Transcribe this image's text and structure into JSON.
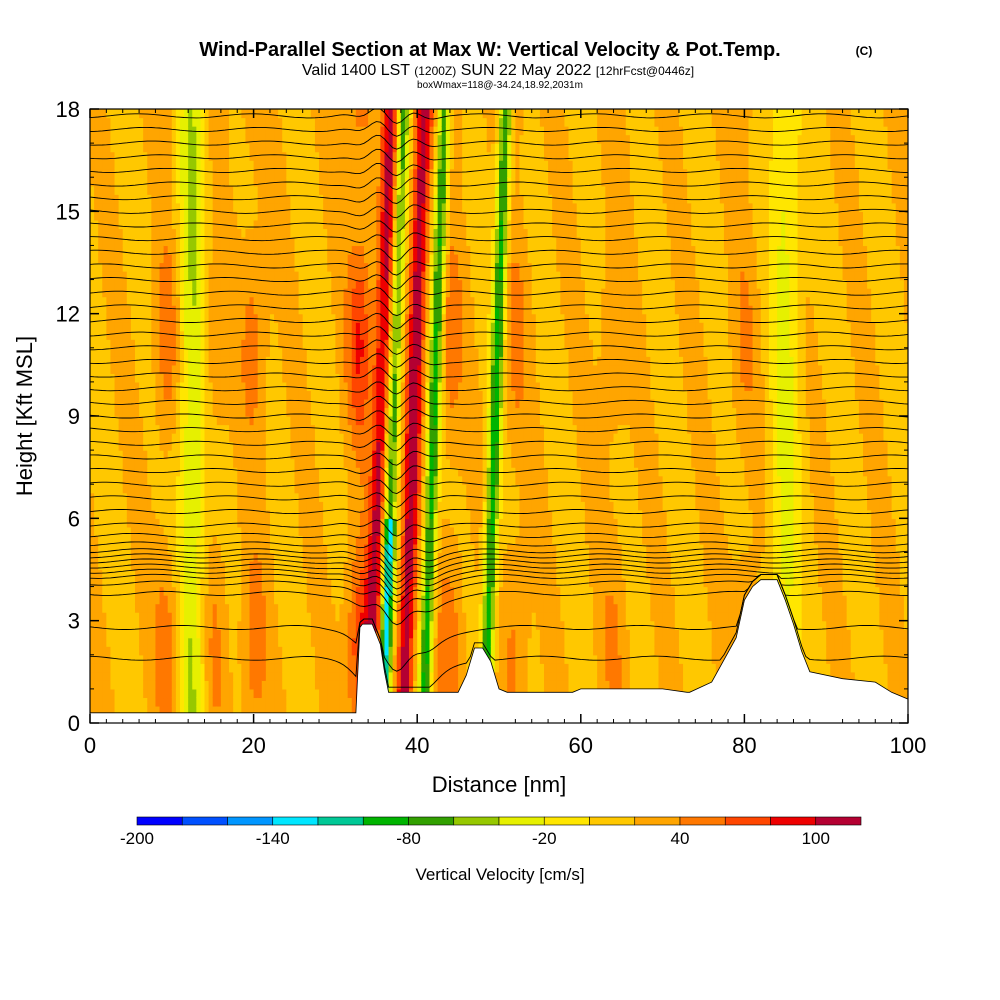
{
  "chart_data": {
    "type": "heatmap",
    "title": "Wind-Parallel Section at Max W: Vertical Velocity & Pot.Temp.",
    "copyright_mark": "(C)",
    "subtitle": {
      "valid_prefix": "Valid 1400 LST",
      "utc": "(1200Z)",
      "date": "SUN 22 May 2022",
      "forecast": "[12hrFcst@0446z]"
    },
    "box_info": "boxWmax=118@-34.24,18.92,2031m",
    "xlabel": "Distance [nm]",
    "ylabel": "Height [Kft MSL]",
    "xlim": [
      0,
      100
    ],
    "ylim": [
      0,
      18
    ],
    "x_ticks": [
      0,
      20,
      40,
      60,
      80,
      100
    ],
    "x_tick_labels": [
      "0",
      "20",
      "40",
      "60",
      "80",
      "100"
    ],
    "y_ticks": [
      0,
      3,
      6,
      9,
      12,
      15,
      18
    ],
    "y_tick_labels": [
      "0",
      "3",
      "6",
      "9",
      "12",
      "15",
      "18"
    ],
    "fill_variable": "Vertical Velocity [cm/s]",
    "contour_variable": "Potential Temperature (C)",
    "colorbar": {
      "label": "Vertical Velocity [cm/s]",
      "levels": [
        -200,
        -180,
        -160,
        -140,
        -120,
        -100,
        -80,
        -60,
        -40,
        -20,
        0,
        20,
        40,
        60,
        80,
        100,
        120
      ],
      "colors": [
        "#0000ff",
        "#0050ff",
        "#0096ff",
        "#00e6ff",
        "#00c896",
        "#00b400",
        "#32a000",
        "#96c800",
        "#e6f000",
        "#ffe600",
        "#ffc800",
        "#ffa500",
        "#ff7800",
        "#ff4600",
        "#ee0000",
        "#b40032"
      ],
      "tick_values": [
        -200,
        -140,
        -80,
        -20,
        40,
        100
      ],
      "tick_labels": [
        "-200",
        "-140",
        "-80",
        "-20",
        "40",
        "100"
      ]
    },
    "terrain_profile": {
      "distance_nm": [
        0,
        10,
        20,
        30,
        32.5,
        33,
        33.3,
        34.5,
        35.5,
        36,
        36.5,
        37,
        38,
        42,
        45,
        46,
        47,
        48,
        49,
        50,
        51,
        55,
        59,
        60,
        62,
        70,
        73,
        73.3,
        76,
        79,
        80,
        81,
        82,
        84,
        85,
        86,
        87,
        88,
        92,
        96,
        98,
        100
      ],
      "height_kft": [
        0.3,
        0.3,
        0.3,
        0.3,
        0.3,
        2.8,
        2.9,
        2.9,
        2.3,
        1.5,
        0.9,
        0.9,
        0.9,
        0.9,
        0.9,
        1.4,
        2.2,
        2.2,
        1.8,
        1.0,
        0.9,
        0.9,
        0.9,
        1.0,
        1.0,
        1.0,
        0.9,
        0.9,
        1.2,
        2.5,
        3.6,
        4.0,
        4.2,
        4.2,
        3.6,
        2.9,
        2.1,
        1.5,
        1.3,
        1.2,
        0.9,
        0.7
      ]
    },
    "updraft_bands": [
      {
        "x_center_nm": 9.5,
        "peak_cm_s": 55
      },
      {
        "x_center_nm": 15,
        "peak_cm_s": 45
      },
      {
        "x_center_nm": 20,
        "peak_cm_s": 50
      },
      {
        "x_center_nm": 33,
        "peak_cm_s": 80
      },
      {
        "x_center_nm": 35,
        "peak_cm_s": 105
      },
      {
        "x_center_nm": 39,
        "peak_cm_s": 118
      },
      {
        "x_center_nm": 44,
        "peak_cm_s": 55
      },
      {
        "x_center_nm": 52,
        "peak_cm_s": 45
      },
      {
        "x_center_nm": 64,
        "peak_cm_s": 40
      },
      {
        "x_center_nm": 80,
        "peak_cm_s": 40
      }
    ],
    "downdraft_bands": [
      {
        "x_center_nm": 12.5,
        "peak_cm_s": -40
      },
      {
        "x_center_nm": 36.5,
        "peak_cm_s": -140
      },
      {
        "x_center_nm": 41.5,
        "peak_cm_s": -90
      },
      {
        "x_center_nm": 49,
        "peak_cm_s": -90
      },
      {
        "x_center_nm": 85,
        "peak_cm_s": -25
      }
    ],
    "isentrope_heights_kft": [
      1.9,
      2.8,
      3.8,
      4.1,
      4.3,
      4.45,
      4.6,
      4.75,
      4.9,
      5.05,
      5.25,
      5.5,
      5.8,
      6.2,
      6.6,
      7.0,
      7.4,
      7.8,
      8.2,
      8.6,
      9.0,
      9.4,
      9.8,
      10.2,
      10.6,
      11.0,
      11.4,
      11.8,
      12.2,
      12.6,
      13.0,
      13.4,
      13.8,
      14.2,
      14.6,
      15.0,
      15.4,
      15.8,
      16.2,
      16.6,
      17.0,
      17.4,
      17.8
    ]
  }
}
